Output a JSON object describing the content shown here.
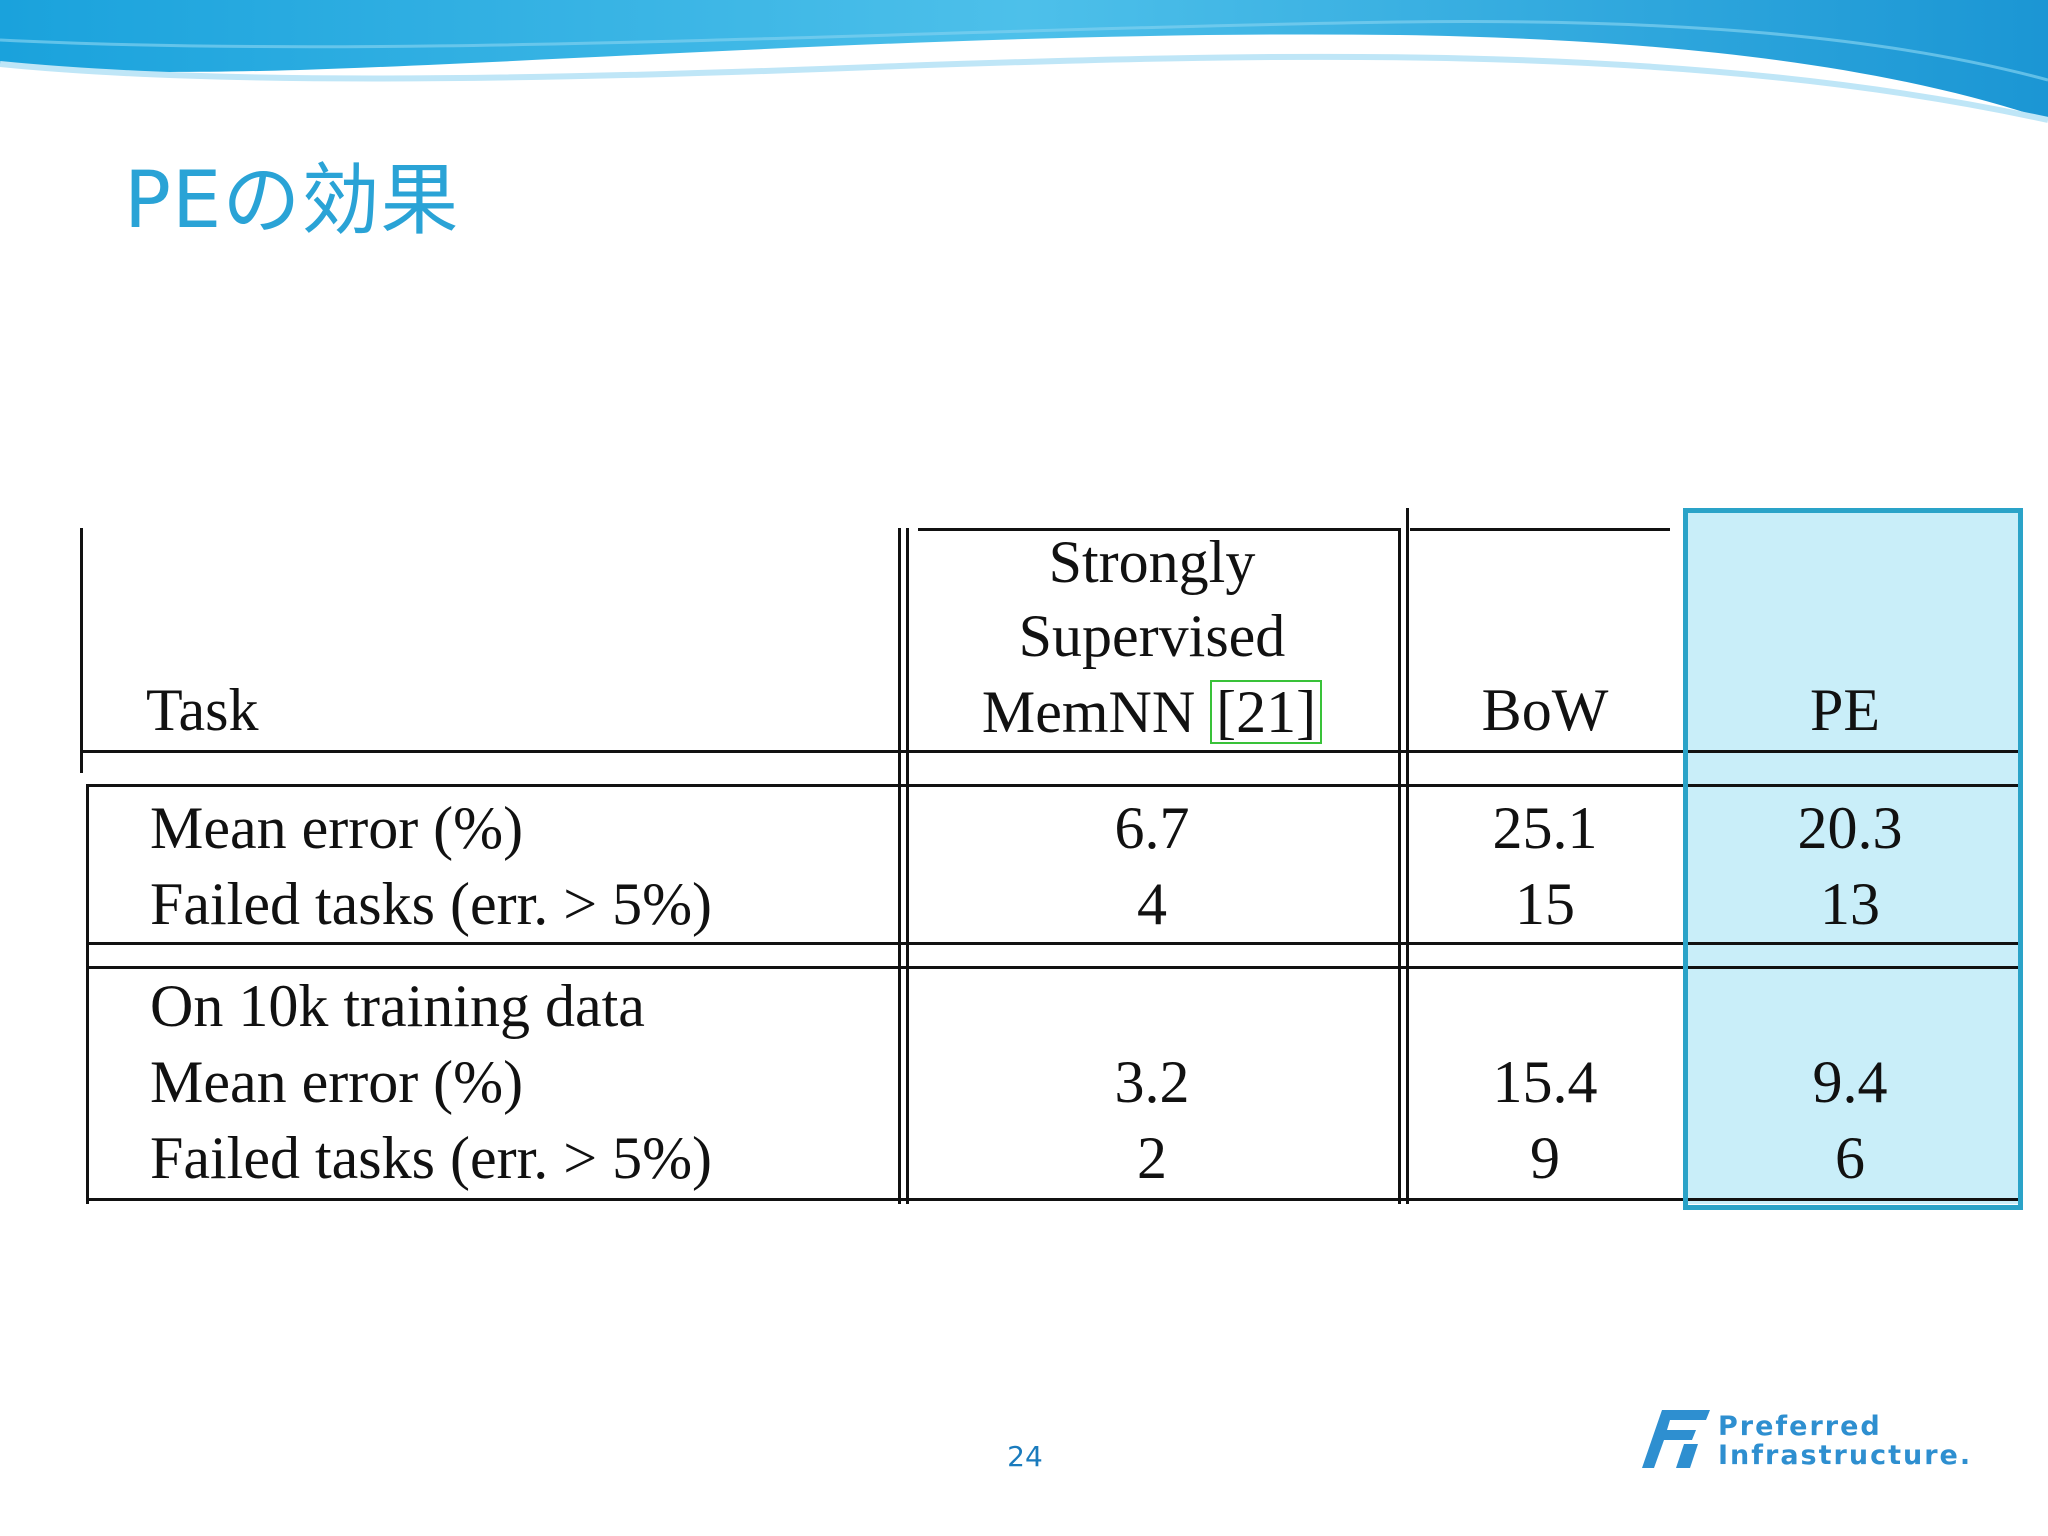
{
  "slide": {
    "title": "PEの効果",
    "page_number": "24"
  },
  "table": {
    "headers": {
      "task": "Task",
      "memnn_line1": "Strongly",
      "memnn_line2": "Supervised",
      "memnn_line3": "MemNN",
      "memnn_ref": "[21]",
      "bow": "BoW",
      "pe": "PE"
    },
    "group1": {
      "rows": [
        {
          "label": "Mean error (%)",
          "memnn": "6.7",
          "bow": "25.1",
          "pe": "20.3"
        },
        {
          "label": "Failed tasks (err. > 5%)",
          "memnn": "4",
          "bow": "15",
          "pe": "13"
        }
      ]
    },
    "group2": {
      "caption": "On 10k training data",
      "rows": [
        {
          "label": "Mean error (%)",
          "memnn": "3.2",
          "bow": "15.4",
          "pe": "9.4"
        },
        {
          "label": "Failed tasks (err. > 5%)",
          "memnn": "2",
          "bow": "9",
          "pe": "6"
        }
      ]
    }
  },
  "logo": {
    "line1": "Preferred",
    "line2": "Infrastructure."
  },
  "colors": {
    "title": "#2aa3d6",
    "highlight_fill": "#c9eef9",
    "highlight_border": "#2aa3c8",
    "ref_box": "#39c239",
    "page_number": "#1a7bbd"
  }
}
